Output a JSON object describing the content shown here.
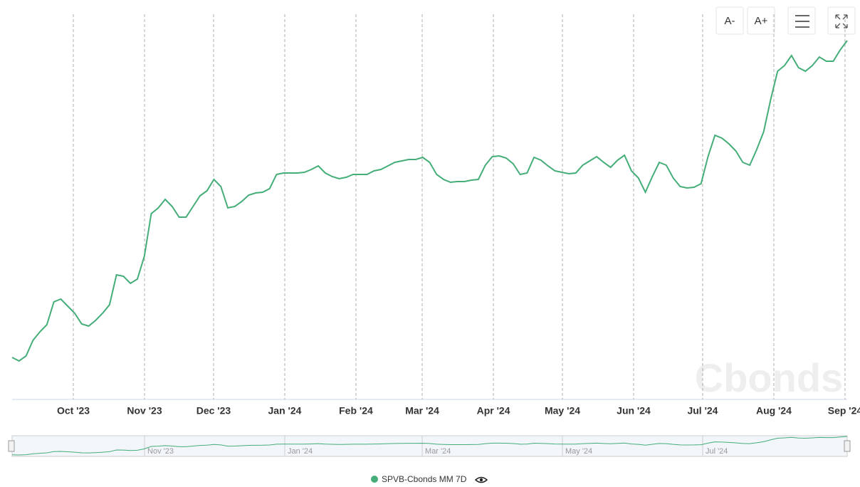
{
  "chart_data": {
    "type": "line",
    "watermark": "Cbonds",
    "buttons": [
      "A-",
      "A+"
    ],
    "series": [
      {
        "name": "SPVB-Cbonds MM 7D",
        "color": "#44ad78",
        "values": [
          58,
          53,
          60,
          82,
          94,
          104,
          136,
          140,
          130,
          120,
          105,
          102,
          110,
          120,
          132,
          174,
          172,
          162,
          168,
          200,
          260,
          268,
          280,
          270,
          255,
          255,
          270,
          285,
          292,
          308,
          298,
          268,
          270,
          277,
          286,
          289,
          290,
          295,
          315,
          317,
          317,
          317,
          318,
          322,
          327,
          317,
          312,
          309,
          311,
          315,
          315,
          315,
          320,
          322,
          327,
          332,
          334,
          336,
          336,
          339,
          332,
          315,
          308,
          304,
          305,
          305,
          307,
          308,
          328,
          340,
          341,
          338,
          330,
          315,
          317,
          339,
          335,
          327,
          320,
          318,
          316,
          317,
          328,
          334,
          340,
          332,
          325,
          335,
          342,
          320,
          310,
          290,
          312,
          332,
          328,
          310,
          298,
          296,
          297,
          302,
          340,
          370,
          366,
          358,
          348,
          332,
          328,
          350,
          375,
          420,
          460,
          468,
          482,
          465,
          460,
          468,
          480,
          474,
          474,
          490,
          503
        ]
      }
    ],
    "xticks": [
      {
        "value": 8.8,
        "label": "Oct '23"
      },
      {
        "value": 19.03,
        "label": "Nov '23"
      },
      {
        "value": 28.95,
        "label": "Dec '23"
      },
      {
        "value": 39.18,
        "label": "Jan '24"
      },
      {
        "value": 49.41,
        "label": "Feb '24"
      },
      {
        "value": 58.93,
        "label": "Mar '24"
      },
      {
        "value": 69.16,
        "label": "Apr '24"
      },
      {
        "value": 79.08,
        "label": "May '24"
      },
      {
        "value": 89.31,
        "label": "Jun '24"
      },
      {
        "value": 99.23,
        "label": "Jul '24"
      },
      {
        "value": 109.46,
        "label": "Aug '24"
      },
      {
        "value": 119.69,
        "label": "Sep '24"
      }
    ],
    "grid": true
  }
}
